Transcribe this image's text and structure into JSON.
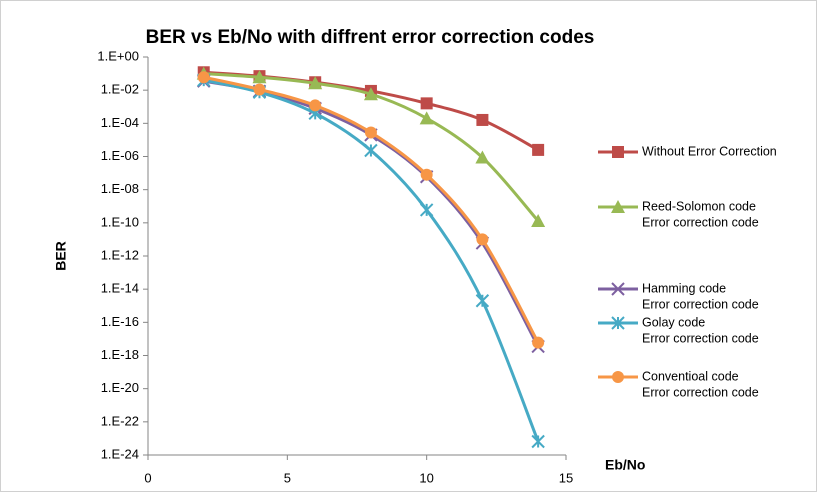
{
  "chart_data": {
    "type": "line",
    "title": "BER vs Eb/No with diffrent error correction codes",
    "x_label": "Eb/No",
    "y_label": "BER",
    "log_y": true,
    "x": [
      2,
      4,
      6,
      8,
      10,
      12,
      14
    ],
    "xlim": [
      0,
      15
    ],
    "xticks": [
      0,
      5,
      10,
      15
    ],
    "ylim": [
      1e-24,
      1
    ],
    "yticks": [
      {
        "value": 1,
        "label": "1.E+00"
      },
      {
        "value": 0.01,
        "label": "1.E-02"
      },
      {
        "value": 0.0001,
        "label": "1.E-04"
      },
      {
        "value": 1e-06,
        "label": "1.E-06"
      },
      {
        "value": 1e-08,
        "label": "1.E-08"
      },
      {
        "value": 1e-10,
        "label": "1.E-10"
      },
      {
        "value": 1e-12,
        "label": "1.E-12"
      },
      {
        "value": 1e-14,
        "label": "1.E-14"
      },
      {
        "value": 1e-16,
        "label": "1.E-16"
      },
      {
        "value": 1e-18,
        "label": "1.E-18"
      },
      {
        "value": 1e-20,
        "label": "1.E-20"
      },
      {
        "value": 1e-22,
        "label": "1.E-22"
      },
      {
        "value": 1e-24,
        "label": "1.E-24"
      }
    ],
    "legend": "right",
    "series": [
      {
        "name": [
          "Without Error Correction"
        ],
        "color": "#be4b48",
        "marker": "square",
        "values": [
          0.12,
          0.07,
          0.03,
          0.009,
          0.0016,
          0.00016,
          2.5e-06
        ]
      },
      {
        "name": [
          "Reed-Solomon code",
          "Error correction code"
        ],
        "color": "#98b954",
        "marker": "triangle",
        "values": [
          0.1,
          0.06,
          0.026,
          0.0057,
          0.0002,
          8.7e-07,
          1.3e-10
        ]
      },
      {
        "name": [
          "Hamming code",
          "Error correction code"
        ],
        "color": "#7d60a0",
        "marker": "x",
        "values": [
          0.035,
          0.0087,
          0.0008,
          2e-05,
          6e-08,
          6e-12,
          3.5e-18
        ]
      },
      {
        "name": [
          "Golay code",
          "Error correction code"
        ],
        "color": "#46aac5",
        "marker": "star",
        "values": [
          0.04,
          0.0075,
          0.0004,
          2.3e-06,
          6e-10,
          2e-15,
          6.5e-24
        ]
      },
      {
        "name": [
          "Conventioal code",
          "Error correction code"
        ],
        "color": "#f79646",
        "marker": "circle",
        "values": [
          0.06,
          0.011,
          0.0012,
          2.8e-05,
          8e-08,
          1e-11,
          6e-18
        ]
      }
    ]
  }
}
